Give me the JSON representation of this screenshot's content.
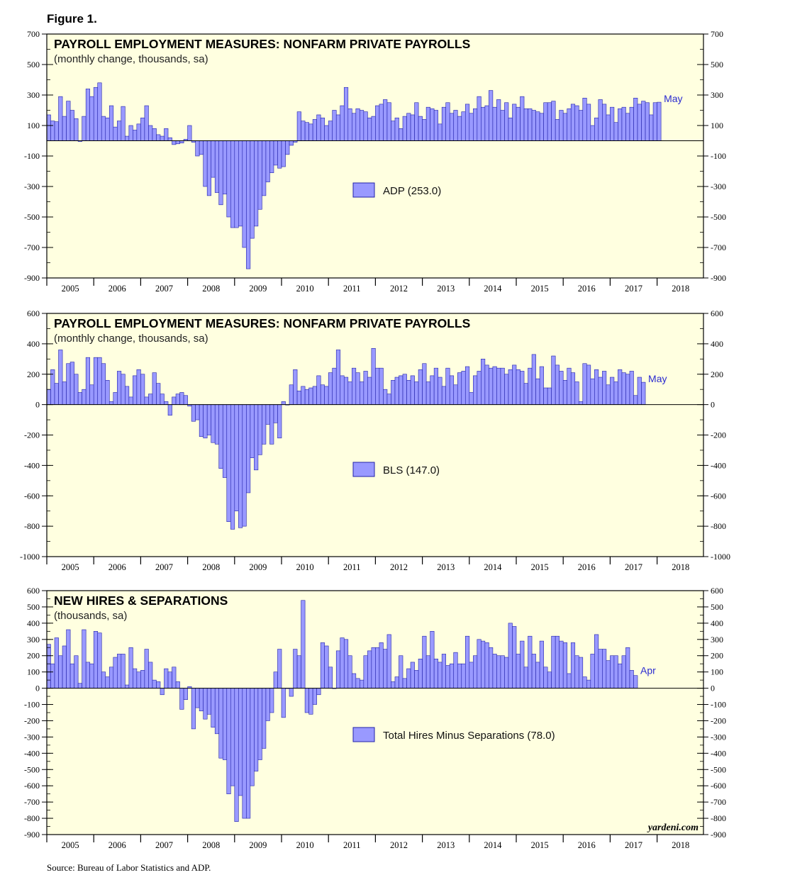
{
  "figure_label": "Figure 1.",
  "source_note": "Source: Bureau of Labor Statistics and ADP.",
  "brand": "yardeni.com",
  "colors": {
    "plot_bg": "#ffffe0",
    "bar_fill": "#9999ff",
    "bar_stroke": "#2222aa",
    "end_label": "#2a2ad0"
  },
  "chart_data": [
    {
      "type": "bar",
      "title": "PAYROLL EMPLOYMENT MEASURES: NONFARM PRIVATE PAYROLLS",
      "subtitle": "(monthly change, thousands, sa)",
      "legend": "ADP (253.0)",
      "end_label": "May",
      "ylim": [
        -900,
        700
      ],
      "yticks": [
        700,
        500,
        300,
        100,
        -100,
        -300,
        -500,
        -700,
        -900
      ],
      "ytick_labels": [
        "700",
        "500",
        "300",
        "100",
        "-100",
        "-300",
        "-500",
        "-700",
        "-900"
      ],
      "x_start": "2005-01",
      "years": [
        "2005",
        "2006",
        "2007",
        "2008",
        "2009",
        "2010",
        "2011",
        "2012",
        "2013",
        "2014",
        "2015",
        "2016",
        "2017",
        "2018"
      ],
      "values": [
        170,
        130,
        125,
        290,
        160,
        260,
        200,
        145,
        -5,
        160,
        340,
        290,
        350,
        380,
        160,
        150,
        230,
        90,
        130,
        225,
        30,
        100,
        70,
        110,
        150,
        230,
        100,
        80,
        40,
        30,
        80,
        20,
        -25,
        -20,
        -15,
        10,
        100,
        -10,
        -100,
        -90,
        -300,
        -360,
        -240,
        -340,
        -420,
        -350,
        -500,
        -570,
        -570,
        -560,
        -700,
        -840,
        -640,
        -560,
        -450,
        -360,
        -270,
        -210,
        -160,
        -180,
        -170,
        -90,
        -30,
        -10,
        190,
        130,
        120,
        110,
        140,
        170,
        150,
        100,
        130,
        200,
        170,
        230,
        350,
        210,
        180,
        210,
        200,
        190,
        150,
        160,
        230,
        240,
        270,
        250,
        130,
        150,
        80,
        160,
        180,
        170,
        250,
        160,
        140,
        220,
        210,
        200,
        110,
        220,
        250,
        180,
        200,
        160,
        190,
        240,
        180,
        210,
        290,
        220,
        230,
        330,
        220,
        270,
        200,
        250,
        150,
        240,
        220,
        290,
        210,
        210,
        200,
        190,
        180,
        250,
        250,
        260,
        140,
        200,
        180,
        210,
        240,
        230,
        200,
        280,
        240,
        100,
        150,
        270,
        240,
        170,
        220,
        120,
        210,
        220,
        180,
        220,
        280,
        240,
        260,
        250,
        170,
        250,
        253
      ]
    },
    {
      "type": "bar",
      "title": "PAYROLL EMPLOYMENT MEASURES: NONFARM PRIVATE PAYROLLS",
      "subtitle": "(monthly change, thousands, sa)",
      "legend": "BLS (147.0)",
      "end_label": "May",
      "ylim": [
        -1000,
        600
      ],
      "yticks": [
        600,
        400,
        200,
        0,
        -200,
        -400,
        -600,
        -800,
        -1000
      ],
      "ytick_labels": [
        "600",
        "400",
        "200",
        "0",
        "-200",
        "-400",
        "-600",
        "-800",
        "-1000"
      ],
      "x_start": "2005-01",
      "years": [
        "2005",
        "2006",
        "2007",
        "2008",
        "2009",
        "2010",
        "2011",
        "2012",
        "2013",
        "2014",
        "2015",
        "2016",
        "2017",
        "2018"
      ],
      "values": [
        100,
        230,
        140,
        360,
        150,
        270,
        280,
        200,
        80,
        100,
        310,
        130,
        310,
        310,
        270,
        160,
        20,
        80,
        220,
        200,
        120,
        50,
        190,
        230,
        200,
        50,
        70,
        210,
        140,
        70,
        20,
        -70,
        50,
        70,
        80,
        60,
        -10,
        -110,
        -100,
        -210,
        -220,
        -200,
        -250,
        -260,
        -420,
        -480,
        -770,
        -820,
        -700,
        -810,
        -800,
        -580,
        -350,
        -430,
        -330,
        -260,
        -130,
        -260,
        -120,
        -220,
        20,
        0,
        130,
        230,
        90,
        120,
        100,
        110,
        120,
        190,
        130,
        120,
        210,
        240,
        360,
        190,
        180,
        150,
        240,
        210,
        150,
        220,
        180,
        370,
        240,
        240,
        100,
        70,
        160,
        180,
        190,
        200,
        160,
        190,
        150,
        230,
        270,
        150,
        190,
        240,
        180,
        120,
        240,
        190,
        130,
        210,
        220,
        250,
        80,
        190,
        220,
        300,
        260,
        240,
        250,
        240,
        240,
        200,
        230,
        260,
        230,
        220,
        140,
        240,
        330,
        170,
        250,
        110,
        110,
        320,
        260,
        220,
        160,
        240,
        210,
        150,
        20,
        270,
        260,
        170,
        230,
        180,
        220,
        130,
        180,
        150,
        230,
        210,
        200,
        220,
        60,
        180,
        147
      ]
    },
    {
      "type": "bar",
      "title": "NEW HIRES & SEPARATIONS",
      "subtitle": "(thousands, sa)",
      "legend": "Total Hires Minus Separations (78.0)",
      "end_label": "Apr",
      "ylim": [
        -900,
        600
      ],
      "yticks": [
        600,
        500,
        400,
        300,
        200,
        100,
        0,
        -100,
        -200,
        -300,
        -400,
        -500,
        -600,
        -700,
        -800,
        -900
      ],
      "ytick_labels": [
        "600",
        "500",
        "400",
        "300",
        "200",
        "100",
        "0",
        "-100",
        "-200",
        "-300",
        "-400",
        "-500",
        "-600",
        "-700",
        "-800",
        "-900"
      ],
      "x_start": "2005-01",
      "years": [
        "2005",
        "2006",
        "2007",
        "2008",
        "2009",
        "2010",
        "2011",
        "2012",
        "2013",
        "2014",
        "2015",
        "2016",
        "2017",
        "2018"
      ],
      "values": [
        270,
        150,
        310,
        200,
        260,
        360,
        150,
        200,
        30,
        360,
        160,
        150,
        350,
        340,
        100,
        70,
        130,
        190,
        210,
        210,
        20,
        250,
        120,
        100,
        110,
        240,
        160,
        50,
        40,
        -40,
        120,
        100,
        130,
        40,
        -130,
        -70,
        10,
        -250,
        -120,
        -140,
        -190,
        -160,
        -240,
        -280,
        -430,
        -440,
        -650,
        -600,
        -820,
        -660,
        -800,
        -800,
        -600,
        -510,
        -440,
        -370,
        -200,
        -150,
        100,
        240,
        -180,
        0,
        -50,
        240,
        200,
        540,
        -150,
        -160,
        -100,
        -40,
        280,
        260,
        130,
        0,
        230,
        310,
        300,
        200,
        90,
        60,
        50,
        200,
        230,
        250,
        250,
        280,
        240,
        330,
        40,
        70,
        200,
        60,
        120,
        160,
        110,
        180,
        320,
        200,
        350,
        180,
        160,
        210,
        140,
        150,
        220,
        150,
        150,
        320,
        160,
        200,
        300,
        290,
        280,
        250,
        210,
        200,
        200,
        190,
        400,
        380,
        210,
        290,
        130,
        320,
        210,
        160,
        290,
        130,
        100,
        320,
        320,
        290,
        280,
        90,
        280,
        200,
        190,
        70,
        50,
        210,
        330,
        240,
        240,
        170,
        200,
        200,
        150,
        200,
        250,
        110,
        78
      ]
    }
  ]
}
